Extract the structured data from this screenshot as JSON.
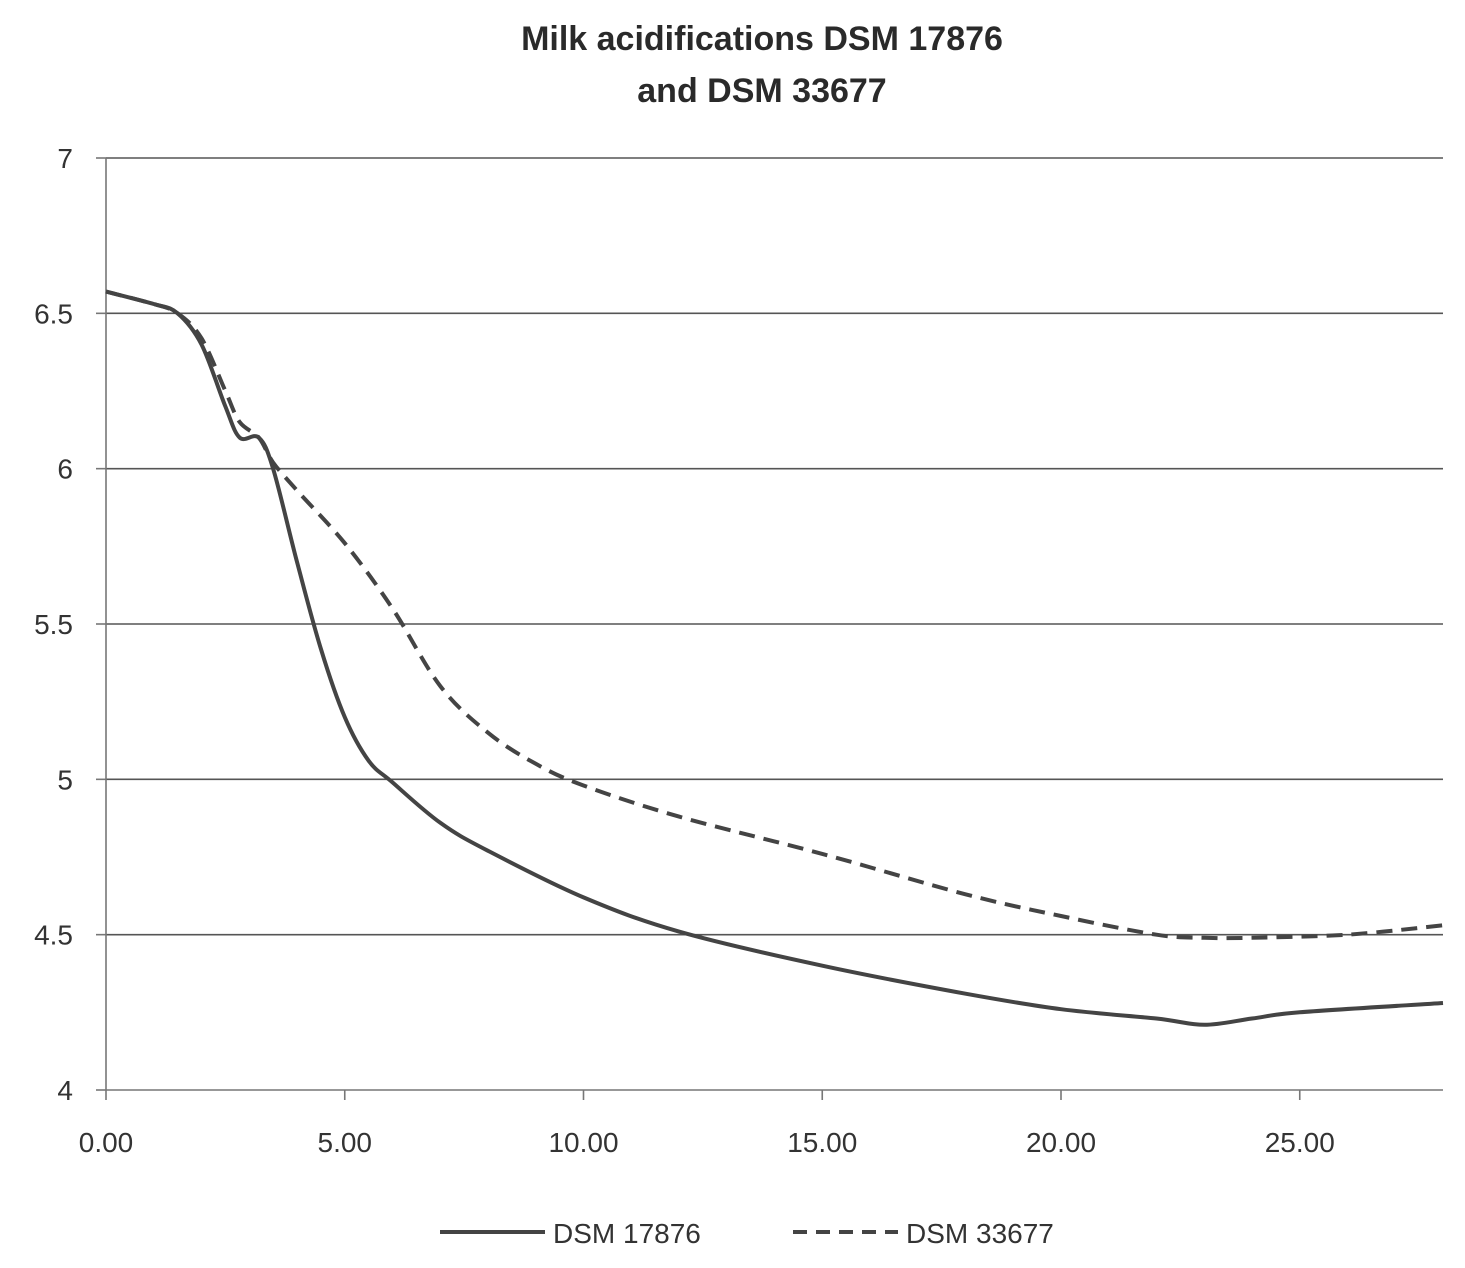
{
  "chart_data": {
    "type": "line",
    "title_lines": [
      "Milk acidifications DSM 17876",
      "and DSM 33677"
    ],
    "xlabel": "",
    "ylabel": "",
    "xlim": [
      0,
      28
    ],
    "ylim": [
      4,
      7
    ],
    "x_ticks": [
      0,
      5,
      10,
      15,
      20,
      25
    ],
    "x_tick_labels": [
      "0.00",
      "5.00",
      "10.00",
      "15.00",
      "20.00",
      "25.00"
    ],
    "y_ticks": [
      4,
      4.5,
      5,
      5.5,
      6,
      6.5,
      7
    ],
    "y_tick_labels": [
      "4",
      "4.5",
      "5",
      "5.5",
      "6",
      "6.5",
      "7"
    ],
    "grid": true,
    "legend_position": "bottom",
    "series": [
      {
        "name": "DSM 17876",
        "style": "solid",
        "color": "#444444",
        "x": [
          0,
          1,
          1.5,
          2,
          2.5,
          2.8,
          3.2,
          3.5,
          4,
          4.5,
          5,
          5.5,
          6,
          7,
          8,
          10,
          12,
          15,
          18,
          20,
          22,
          23,
          24,
          25,
          28
        ],
        "y": [
          6.57,
          6.53,
          6.5,
          6.4,
          6.2,
          6.1,
          6.1,
          6.0,
          5.7,
          5.42,
          5.2,
          5.06,
          4.99,
          4.86,
          4.77,
          4.62,
          4.51,
          4.4,
          4.31,
          4.26,
          4.23,
          4.21,
          4.23,
          4.25,
          4.28
        ]
      },
      {
        "name": "DSM 33677",
        "style": "dashed",
        "color": "#444444",
        "x": [
          0,
          1,
          1.5,
          2,
          2.5,
          2.8,
          3.2,
          3.5,
          4,
          5,
          6,
          7,
          8,
          9,
          10,
          12,
          15,
          18,
          20,
          22,
          23,
          24,
          26,
          28
        ],
        "y": [
          6.57,
          6.53,
          6.5,
          6.42,
          6.25,
          6.15,
          6.1,
          6.02,
          5.93,
          5.76,
          5.55,
          5.3,
          5.15,
          5.05,
          4.98,
          4.88,
          4.76,
          4.63,
          4.56,
          4.5,
          4.49,
          4.49,
          4.5,
          4.53
        ]
      }
    ]
  }
}
